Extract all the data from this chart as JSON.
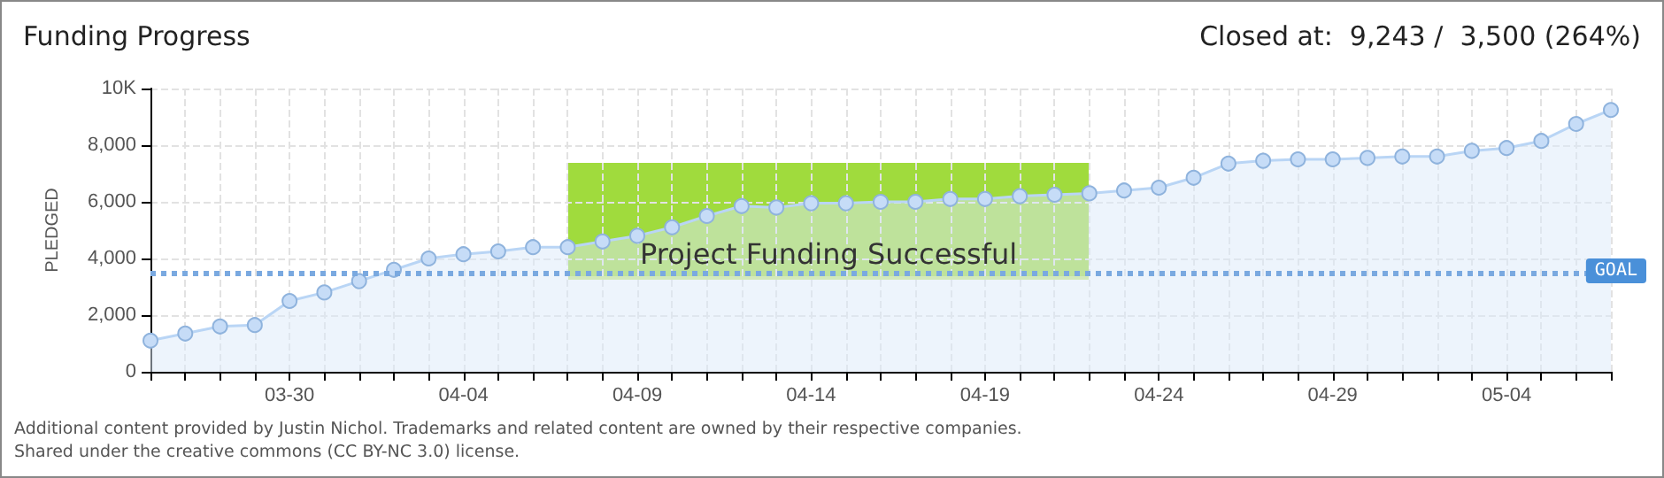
{
  "chart_data": {
    "type": "area",
    "title": "Funding Progress",
    "subtitle": "Closed at:  9,243 /  3,500 (264%)",
    "ylabel": "PLEDGED",
    "x": [
      "--03-26",
      "--03-27",
      "--03-28",
      "--03-29",
      "--03-30",
      "--03-31",
      "--04-01",
      "--04-02",
      "--04-03",
      "--04-04",
      "--04-05",
      "--04-06",
      "--04-07",
      "--04-08",
      "--04-09",
      "--04-10",
      "--04-11",
      "--04-12",
      "--04-13",
      "--04-14",
      "--04-15",
      "--04-16",
      "--04-17",
      "--04-18",
      "--04-19",
      "--04-20",
      "--04-21",
      "--04-22",
      "--04-23",
      "--04-24",
      "--04-25",
      "--04-26",
      "--04-27",
      "--04-28",
      "--04-29",
      "--04-30",
      "--05-01",
      "--05-02",
      "--05-03",
      "--05-04",
      "--05-05",
      "--05-06",
      "--05-07"
    ],
    "series": [
      {
        "color": "#b9d5f5",
        "values": [
          1100,
          1350,
          1600,
          1650,
          2500,
          2800,
          3200,
          3600,
          4000,
          4150,
          4250,
          4400,
          4400,
          4600,
          4800,
          5100,
          5500,
          5850,
          5800,
          5950,
          5950,
          6000,
          6000,
          6100,
          6100,
          6200,
          6250,
          6300,
          6400,
          6500,
          6850,
          7350,
          7450,
          7500,
          7500,
          7550,
          7600,
          7600,
          7800,
          7900,
          8150,
          8750,
          9243
        ]
      }
    ],
    "xlim": [
      "--03-26",
      "--05-07"
    ],
    "xticks": [
      {
        "value": "--03-26",
        "label": null
      },
      {
        "value": "--03-27",
        "label": null
      },
      {
        "value": "--03-28",
        "label": null
      },
      {
        "value": "--03-29",
        "label": null
      },
      {
        "value": "--03-30",
        "label": "03-30"
      },
      {
        "value": "--03-31",
        "label": null
      },
      {
        "value": "--04-01",
        "label": null
      },
      {
        "value": "--04-02",
        "label": null
      },
      {
        "value": "--04-03",
        "label": null
      },
      {
        "value": "--04-04",
        "label": "04-04"
      },
      {
        "value": "--04-05",
        "label": null
      },
      {
        "value": "--04-06",
        "label": null
      },
      {
        "value": "--04-07",
        "label": null
      },
      {
        "value": "--04-08",
        "label": null
      },
      {
        "value": "--04-09",
        "label": "04-09"
      },
      {
        "value": "--04-10",
        "label": null
      },
      {
        "value": "--04-11",
        "label": null
      },
      {
        "value": "--04-12",
        "label": null
      },
      {
        "value": "--04-13",
        "label": null
      },
      {
        "value": "--04-14",
        "label": "04-14"
      },
      {
        "value": "--04-15",
        "label": null
      },
      {
        "value": "--04-16",
        "label": null
      },
      {
        "value": "--04-17",
        "label": null
      },
      {
        "value": "--04-18",
        "label": null
      },
      {
        "value": "--04-19",
        "label": "04-19"
      },
      {
        "value": "--04-20",
        "label": null
      },
      {
        "value": "--04-21",
        "label": null
      },
      {
        "value": "--04-22",
        "label": null
      },
      {
        "value": "--04-23",
        "label": null
      },
      {
        "value": "--04-24",
        "label": "04-24"
      },
      {
        "value": "--04-25",
        "label": null
      },
      {
        "value": "--04-26",
        "label": null
      },
      {
        "value": "--04-27",
        "label": null
      },
      {
        "value": "--04-28",
        "label": null
      },
      {
        "value": "--04-29",
        "label": "04-29"
      },
      {
        "value": "--04-30",
        "label": null
      },
      {
        "value": "--05-01",
        "label": null
      },
      {
        "value": "--05-02",
        "label": null
      },
      {
        "value": "--05-03",
        "label": null
      },
      {
        "value": "--05-04",
        "label": "05-04"
      },
      {
        "value": "--05-05",
        "label": null
      },
      {
        "value": "--05-06",
        "label": null
      },
      {
        "value": "--05-07",
        "label": null
      }
    ],
    "ylim": [
      0,
      10000
    ],
    "yticks": [
      0,
      {
        "value": 2000,
        "label": "2,000"
      },
      {
        "value": 4000,
        "label": "4,000"
      },
      {
        "value": 6000,
        "label": "6,000"
      },
      {
        "value": 8000,
        "label": "8,000"
      },
      {
        "value": 10000,
        "label": "10K"
      }
    ],
    "ref_lines": [
      {
        "axis": "y",
        "value": 3500,
        "label": "GOAL",
        "color": "#7aa9e0",
        "line_style": "dotted"
      }
    ],
    "annotations": [
      "Project Funding Successful",
      "Additional content provided by Justin Nichol. Trademarks and related content are owned by their respective companies.",
      "Shared under the creative commons (CC BY-NC 3.0) license."
    ],
    "grid": true,
    "marker": "circle"
  }
}
